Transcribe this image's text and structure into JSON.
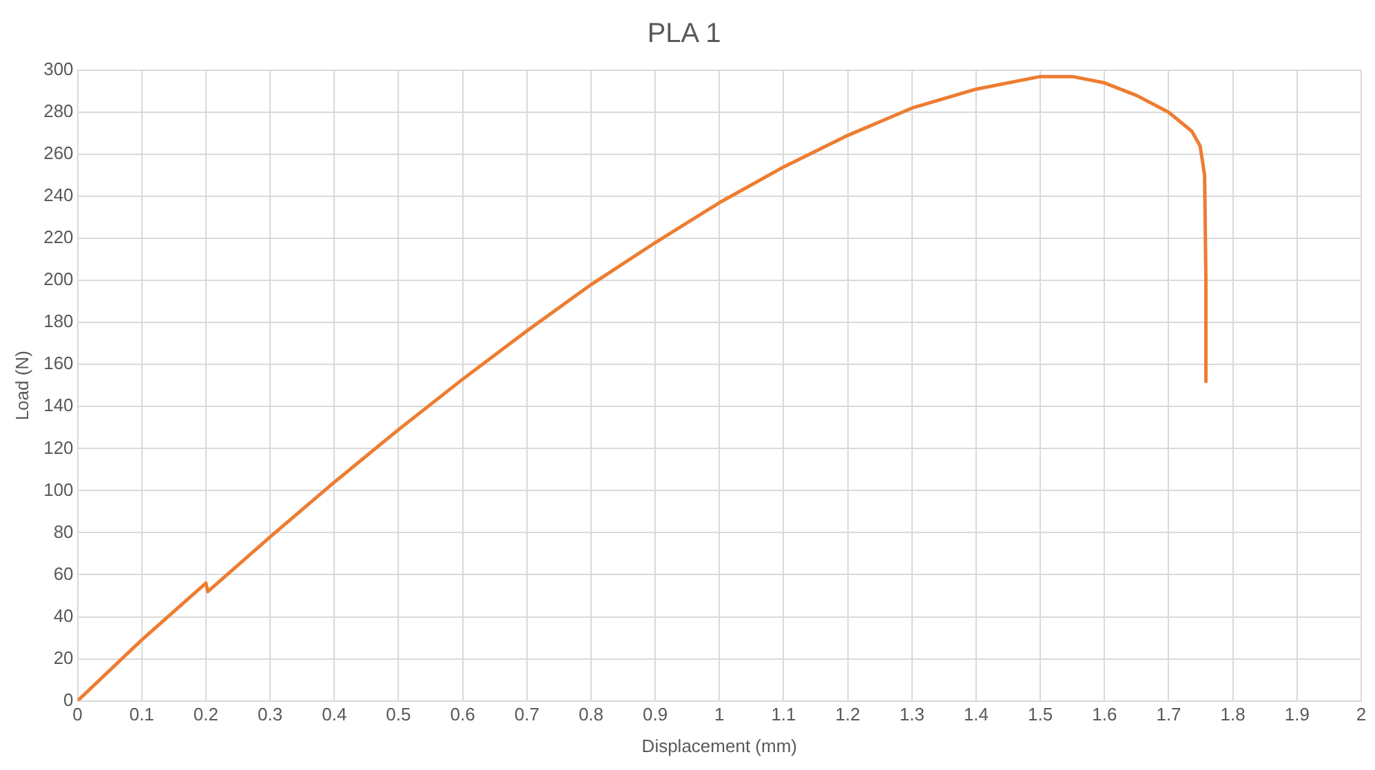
{
  "chart_data": {
    "type": "line",
    "title": "PLA 1",
    "xlabel": "Displacement (mm)",
    "ylabel": "Load (N)",
    "x": [
      0,
      0.1,
      0.2,
      0.203,
      0.3,
      0.4,
      0.5,
      0.6,
      0.7,
      0.8,
      0.9,
      1.0,
      1.1,
      1.2,
      1.3,
      1.4,
      1.5,
      1.55,
      1.6,
      1.65,
      1.7,
      1.736,
      1.749,
      1.756,
      1.758,
      1.758
    ],
    "series": [
      {
        "color": "#ed7d31",
        "values": [
          0,
          29,
          56,
          52,
          78,
          104,
          129,
          153,
          176,
          198,
          218,
          237,
          254,
          269,
          282,
          291,
          297,
          297,
          294,
          288,
          280,
          271,
          264,
          250,
          200,
          152
        ]
      }
    ],
    "xlim": [
      0,
      2
    ],
    "xticks": [
      0,
      0.1,
      0.2,
      0.3,
      0.4,
      0.5,
      0.6,
      0.7,
      0.8,
      0.9,
      1,
      1.1,
      1.2,
      1.3,
      1.4,
      1.5,
      1.6,
      1.7,
      1.8,
      1.9,
      2
    ],
    "ylim": [
      0,
      300
    ],
    "yticks": [
      0,
      20,
      40,
      60,
      80,
      100,
      120,
      140,
      160,
      180,
      200,
      220,
      240,
      260,
      280,
      300
    ],
    "grid": true,
    "marker": "none",
    "line_style": "solid",
    "legend": false
  }
}
